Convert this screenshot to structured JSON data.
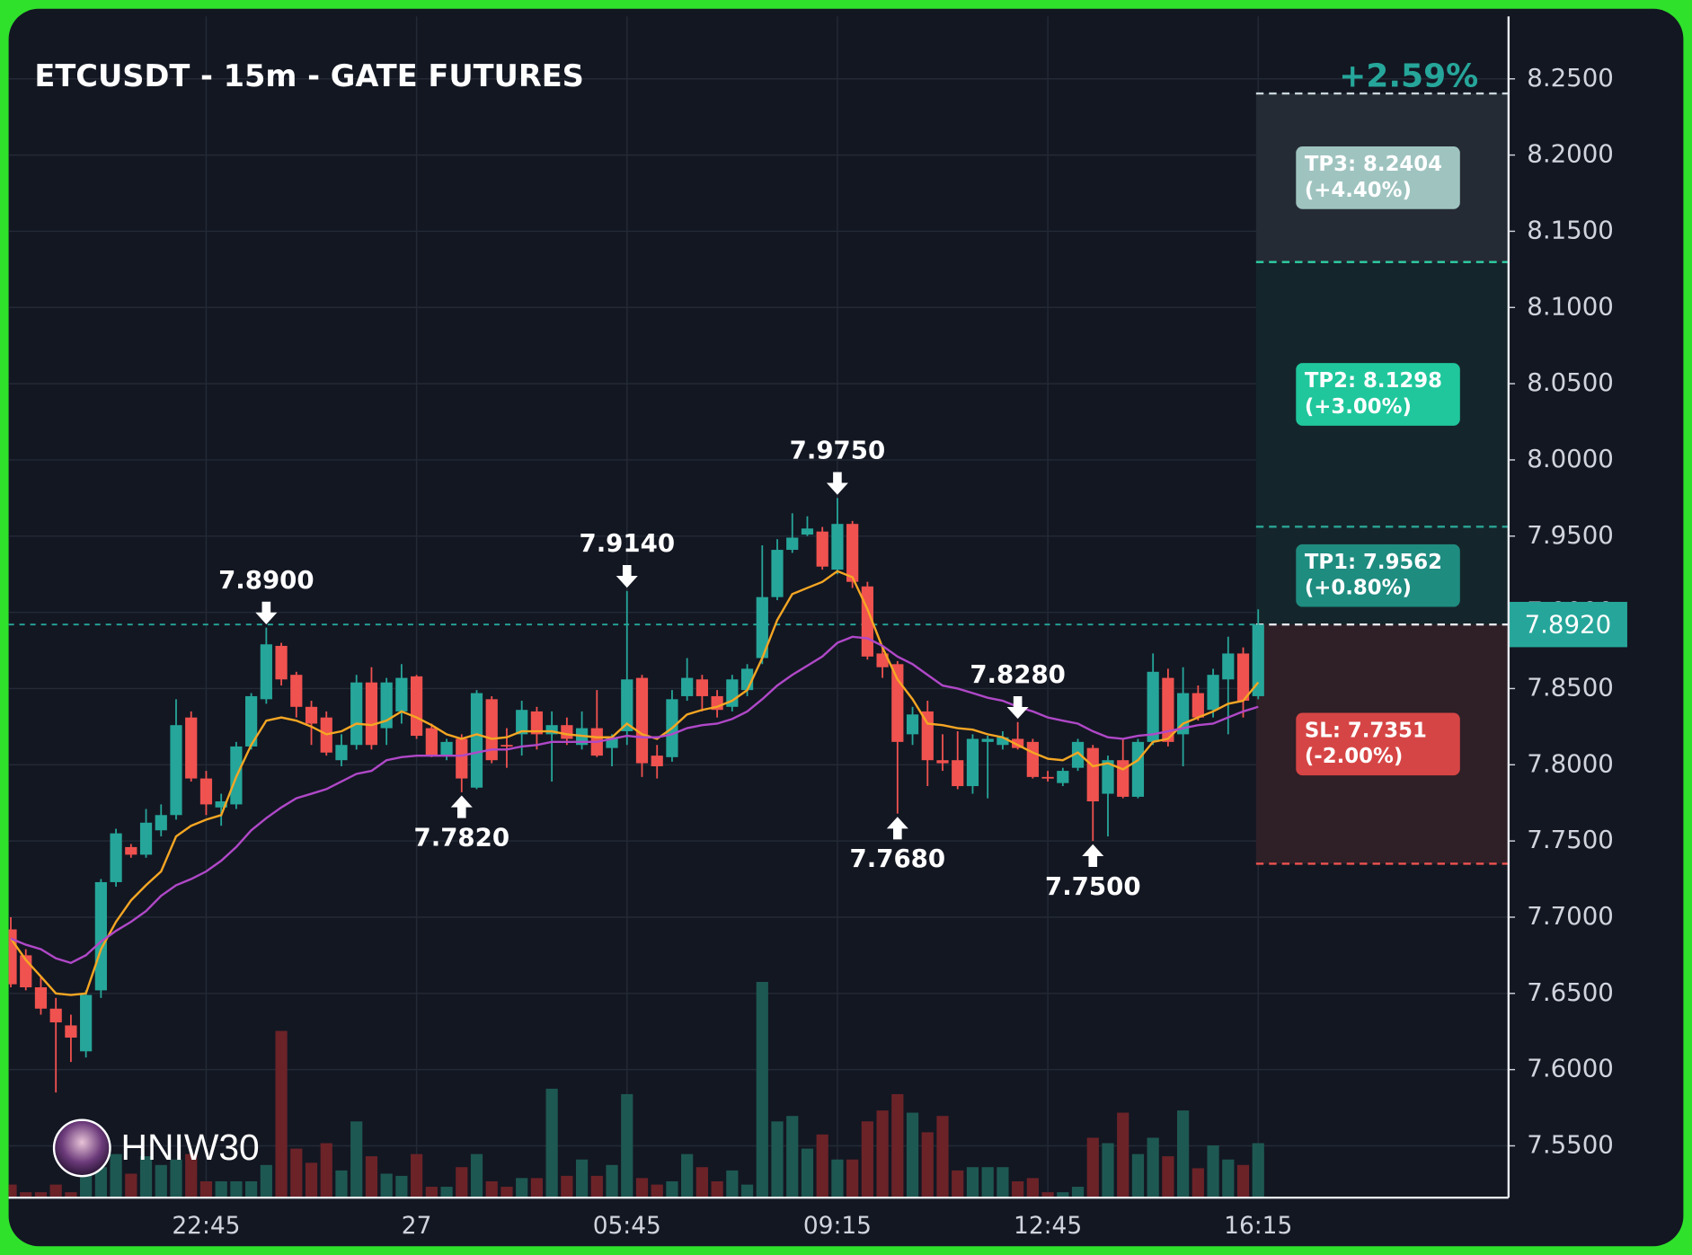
{
  "chart_data": {
    "type": "candlestick",
    "title": "ETCUSDT - 15m - GATE FUTURES",
    "change_label": "+2.59%",
    "watermark": "HNIW30",
    "categories": [
      null,
      null,
      null,
      null,
      null,
      null,
      null,
      null,
      null,
      null,
      null,
      null,
      null,
      "22:45",
      null,
      null,
      null,
      null,
      null,
      null,
      null,
      null,
      null,
      null,
      null,
      null,
      null,
      "27",
      null,
      null,
      null,
      null,
      null,
      null,
      null,
      null,
      null,
      null,
      null,
      null,
      null,
      "05:45",
      null,
      null,
      null,
      null,
      null,
      null,
      null,
      null,
      null,
      null,
      null,
      null,
      null,
      "09:15",
      null,
      null,
      null,
      null,
      null,
      null,
      null,
      null,
      null,
      null,
      null,
      null,
      null,
      "12:45",
      null,
      null,
      null,
      null,
      null,
      null,
      null,
      null,
      null,
      null,
      null,
      null,
      null,
      "16:15"
    ],
    "open": [
      7.692,
      7.675,
      7.654,
      7.64,
      7.629,
      7.612,
      7.652,
      7.723,
      7.746,
      7.741,
      7.757,
      7.767,
      7.831,
      7.791,
      7.772,
      7.774,
      7.812,
      7.843,
      7.878,
      7.859,
      7.838,
      7.831,
      7.803,
      7.813,
      7.854,
      7.824,
      7.835,
      7.858,
      7.824,
      7.806,
      7.817,
      7.785,
      7.843,
      7.813,
      7.82,
      7.835,
      7.82,
      7.826,
      7.813,
      7.824,
      7.811,
      7.822,
      7.857,
      7.806,
      7.805,
      7.845,
      7.856,
      7.845,
      7.838,
      7.849,
      7.87,
      7.91,
      7.941,
      7.951,
      7.953,
      7.928,
      7.958,
      7.917,
      7.873,
      7.866,
      7.82,
      7.835,
      7.803,
      7.803,
      7.786,
      7.815,
      7.813,
      7.817,
      7.815,
      7.792,
      7.788,
      7.798,
      7.811,
      7.781,
      7.803,
      7.779,
      7.815,
      7.857,
      7.82,
      7.847,
      7.836,
      7.856,
      7.873,
      7.845
    ],
    "high": [
      7.7,
      7.679,
      7.661,
      7.647,
      7.636,
      7.652,
      7.725,
      7.758,
      7.748,
      7.771,
      7.774,
      7.843,
      7.835,
      7.796,
      7.781,
      7.815,
      7.847,
      7.89,
      7.88,
      7.861,
      7.842,
      7.835,
      7.82,
      7.859,
      7.864,
      7.857,
      7.866,
      7.859,
      7.827,
      7.817,
      7.82,
      7.849,
      7.845,
      7.824,
      7.842,
      7.838,
      7.835,
      7.831,
      7.835,
      7.849,
      7.82,
      7.914,
      7.859,
      7.813,
      7.849,
      7.87,
      7.859,
      7.849,
      7.859,
      7.866,
      7.944,
      7.948,
      7.965,
      7.963,
      7.956,
      7.975,
      7.96,
      7.92,
      7.877,
      7.868,
      7.838,
      7.842,
      7.82,
      7.822,
      7.82,
      7.819,
      7.822,
      7.828,
      7.817,
      7.796,
      7.798,
      7.817,
      7.813,
      7.806,
      7.817,
      7.817,
      7.873,
      7.863,
      7.864,
      7.852,
      7.863,
      7.884,
      7.877,
      7.902
    ],
    "low": [
      7.654,
      7.652,
      7.636,
      7.585,
      7.605,
      7.608,
      7.647,
      7.72,
      7.739,
      7.739,
      7.753,
      7.764,
      7.789,
      7.767,
      7.76,
      7.771,
      7.81,
      7.84,
      7.852,
      7.831,
      7.813,
      7.806,
      7.799,
      7.81,
      7.81,
      7.813,
      7.827,
      7.817,
      7.805,
      7.803,
      7.782,
      7.784,
      7.801,
      7.798,
      7.806,
      7.81,
      7.789,
      7.813,
      7.81,
      7.805,
      7.799,
      7.813,
      7.792,
      7.791,
      7.802,
      7.842,
      7.835,
      7.831,
      7.835,
      7.845,
      7.866,
      7.908,
      7.939,
      7.95,
      7.928,
      7.925,
      7.916,
      7.869,
      7.857,
      7.768,
      7.813,
      7.786,
      7.796,
      7.784,
      7.781,
      7.778,
      7.81,
      7.81,
      7.791,
      7.789,
      7.786,
      7.796,
      7.75,
      7.753,
      7.778,
      7.778,
      7.813,
      7.812,
      7.799,
      7.829,
      7.831,
      7.82,
      7.831,
      7.843
    ],
    "close": [
      7.656,
      7.654,
      7.64,
      7.631,
      7.621,
      7.649,
      7.723,
      7.755,
      7.741,
      7.762,
      7.767,
      7.826,
      7.791,
      7.774,
      7.776,
      7.812,
      7.845,
      7.879,
      7.856,
      7.838,
      7.827,
      7.808,
      7.813,
      7.854,
      7.813,
      7.854,
      7.857,
      7.819,
      7.806,
      7.815,
      7.791,
      7.847,
      7.803,
      7.812,
      7.836,
      7.82,
      7.826,
      7.817,
      7.824,
      7.806,
      7.818,
      7.856,
      7.801,
      7.799,
      7.843,
      7.857,
      7.845,
      7.836,
      7.856,
      7.863,
      7.91,
      7.941,
      7.949,
      7.955,
      7.93,
      7.958,
      7.92,
      7.871,
      7.864,
      7.815,
      7.833,
      7.803,
      7.801,
      7.786,
      7.817,
      7.817,
      7.818,
      7.811,
      7.792,
      7.791,
      7.796,
      7.815,
      7.776,
      7.803,
      7.779,
      7.815,
      7.861,
      7.815,
      7.847,
      7.831,
      7.859,
      7.873,
      7.842,
      7.892
    ],
    "volume": [
      12,
      5,
      5,
      12,
      5,
      30,
      28,
      40,
      22,
      38,
      30,
      35,
      40,
      15,
      15,
      15,
      15,
      30,
      153,
      45,
      32,
      50,
      25,
      70,
      38,
      22,
      20,
      40,
      10,
      10,
      28,
      40,
      15,
      10,
      18,
      18,
      100,
      20,
      35,
      20,
      30,
      95,
      18,
      12,
      15,
      40,
      28,
      15,
      25,
      12,
      198,
      70,
      75,
      45,
      58,
      35,
      35,
      70,
      80,
      95,
      78,
      60,
      75,
      25,
      28,
      28,
      28,
      15,
      18,
      5,
      5,
      10,
      55,
      50,
      78,
      40,
      55,
      38,
      80,
      27,
      48,
      35,
      30,
      50
    ],
    "up_color": "#26a69a",
    "down_color": "#f0524f",
    "volume_up_color": "#1e5852",
    "volume_down_color": "#6b2328",
    "series": [
      {
        "color": "#f5a623",
        "values": [
          7.686,
          7.672,
          7.661,
          7.65,
          7.649,
          7.65,
          7.679,
          7.697,
          7.711,
          7.721,
          7.73,
          7.753,
          7.76,
          7.764,
          7.767,
          7.792,
          7.813,
          7.829,
          7.831,
          7.829,
          7.825,
          7.82,
          7.822,
          7.827,
          7.826,
          7.829,
          7.835,
          7.831,
          7.826,
          7.82,
          7.817,
          7.82,
          7.817,
          7.818,
          7.822,
          7.822,
          7.822,
          7.82,
          7.819,
          7.818,
          7.818,
          7.827,
          7.82,
          7.817,
          7.824,
          7.833,
          7.836,
          7.838,
          7.842,
          7.849,
          7.87,
          7.895,
          7.912,
          7.916,
          7.92,
          7.927,
          7.923,
          7.902,
          7.877,
          7.856,
          7.843,
          7.827,
          7.826,
          7.824,
          7.823,
          7.82,
          7.818,
          7.813,
          7.808,
          7.804,
          7.803,
          7.808,
          7.799,
          7.801,
          7.797,
          7.803,
          7.815,
          7.817,
          7.827,
          7.831,
          7.835,
          7.84,
          7.842,
          7.854
        ]
      },
      {
        "color": "#b048c8",
        "values": [
          7.686,
          7.682,
          7.679,
          7.673,
          7.67,
          7.675,
          7.684,
          7.691,
          7.697,
          7.704,
          7.714,
          7.721,
          7.725,
          7.73,
          7.737,
          7.746,
          7.757,
          7.765,
          7.772,
          7.778,
          7.781,
          7.784,
          7.789,
          7.794,
          7.796,
          7.803,
          7.805,
          7.806,
          7.806,
          7.806,
          7.806,
          7.808,
          7.81,
          7.81,
          7.812,
          7.813,
          7.815,
          7.815,
          7.815,
          7.815,
          7.817,
          7.819,
          7.818,
          7.818,
          7.82,
          7.824,
          7.826,
          7.827,
          7.83,
          7.835,
          7.843,
          7.852,
          7.859,
          7.865,
          7.871,
          7.88,
          7.884,
          7.883,
          7.878,
          7.871,
          7.866,
          7.859,
          7.852,
          7.85,
          7.847,
          7.844,
          7.842,
          7.838,
          7.835,
          7.831,
          7.829,
          7.827,
          7.822,
          7.818,
          7.817,
          7.819,
          7.82,
          7.822,
          7.824,
          7.826,
          7.827,
          7.831,
          7.835,
          7.838
        ]
      }
    ],
    "annotations": [
      {
        "index": 17,
        "value": 7.89,
        "label": "7.8900",
        "position": "above"
      },
      {
        "index": 30,
        "value": 7.782,
        "label": "7.7820",
        "position": "below"
      },
      {
        "index": 41,
        "value": 7.914,
        "label": "7.9140",
        "position": "above"
      },
      {
        "index": 55,
        "value": 7.975,
        "label": "7.9750",
        "position": "above"
      },
      {
        "index": 59,
        "value": 7.768,
        "label": "7.7680",
        "position": "below"
      },
      {
        "index": 67,
        "value": 7.828,
        "label": "7.8280",
        "position": "above"
      },
      {
        "index": 72,
        "value": 7.75,
        "label": "7.7500",
        "position": "below"
      }
    ],
    "last_price": {
      "value": 7.892,
      "label": "7.8920",
      "color": "#26a69a",
      "line_color": "#e6e9ee"
    },
    "take_profits": [
      {
        "value": 7.9562,
        "label": "TP1: 7.9562",
        "note": "(+0.80%)",
        "color": "#1f8c80",
        "line_color": "#2aa596",
        "zone_color": "#14262b"
      },
      {
        "value": 8.1298,
        "label": "TP2: 8.1298",
        "note": "(+3.00%)",
        "color": "#20c79c",
        "line_color": "#2fd1a6",
        "zone_color": "#14262b"
      },
      {
        "value": 8.2404,
        "label": "TP3: 8.2404",
        "note": "(+4.40%)",
        "color": "#9fc4c0",
        "line_color": "#c8d6d9",
        "zone_color": "#252b35"
      }
    ],
    "stop_loss": {
      "value": 7.7351,
      "label": "SL: 7.7351",
      "note": "(-2.00%)",
      "color": "#d64545",
      "line_color": "#ef5350",
      "zone_color": "#2f1f27"
    },
    "ylim": [
      7.516,
      8.291
    ],
    "yticks": [
      {
        "value": 7.55,
        "label": "7.5500"
      },
      {
        "value": 7.6,
        "label": "7.6000"
      },
      {
        "value": 7.65,
        "label": "7.6500"
      },
      {
        "value": 7.7,
        "label": "7.7000"
      },
      {
        "value": 7.75,
        "label": "7.7500"
      },
      {
        "value": 7.8,
        "label": "7.8000"
      },
      {
        "value": 7.85,
        "label": "7.8500"
      },
      {
        "value": 7.9,
        "label": "7.9000"
      },
      {
        "value": 7.95,
        "label": "7.9500"
      },
      {
        "value": 8.0,
        "label": "8.0000"
      },
      {
        "value": 8.05,
        "label": "8.0500"
      },
      {
        "value": 8.1,
        "label": "8.1000"
      },
      {
        "value": 8.15,
        "label": "8.1500"
      },
      {
        "value": 8.2,
        "label": "8.2000"
      },
      {
        "value": 8.25,
        "label": "8.2500"
      }
    ],
    "grid": true
  }
}
